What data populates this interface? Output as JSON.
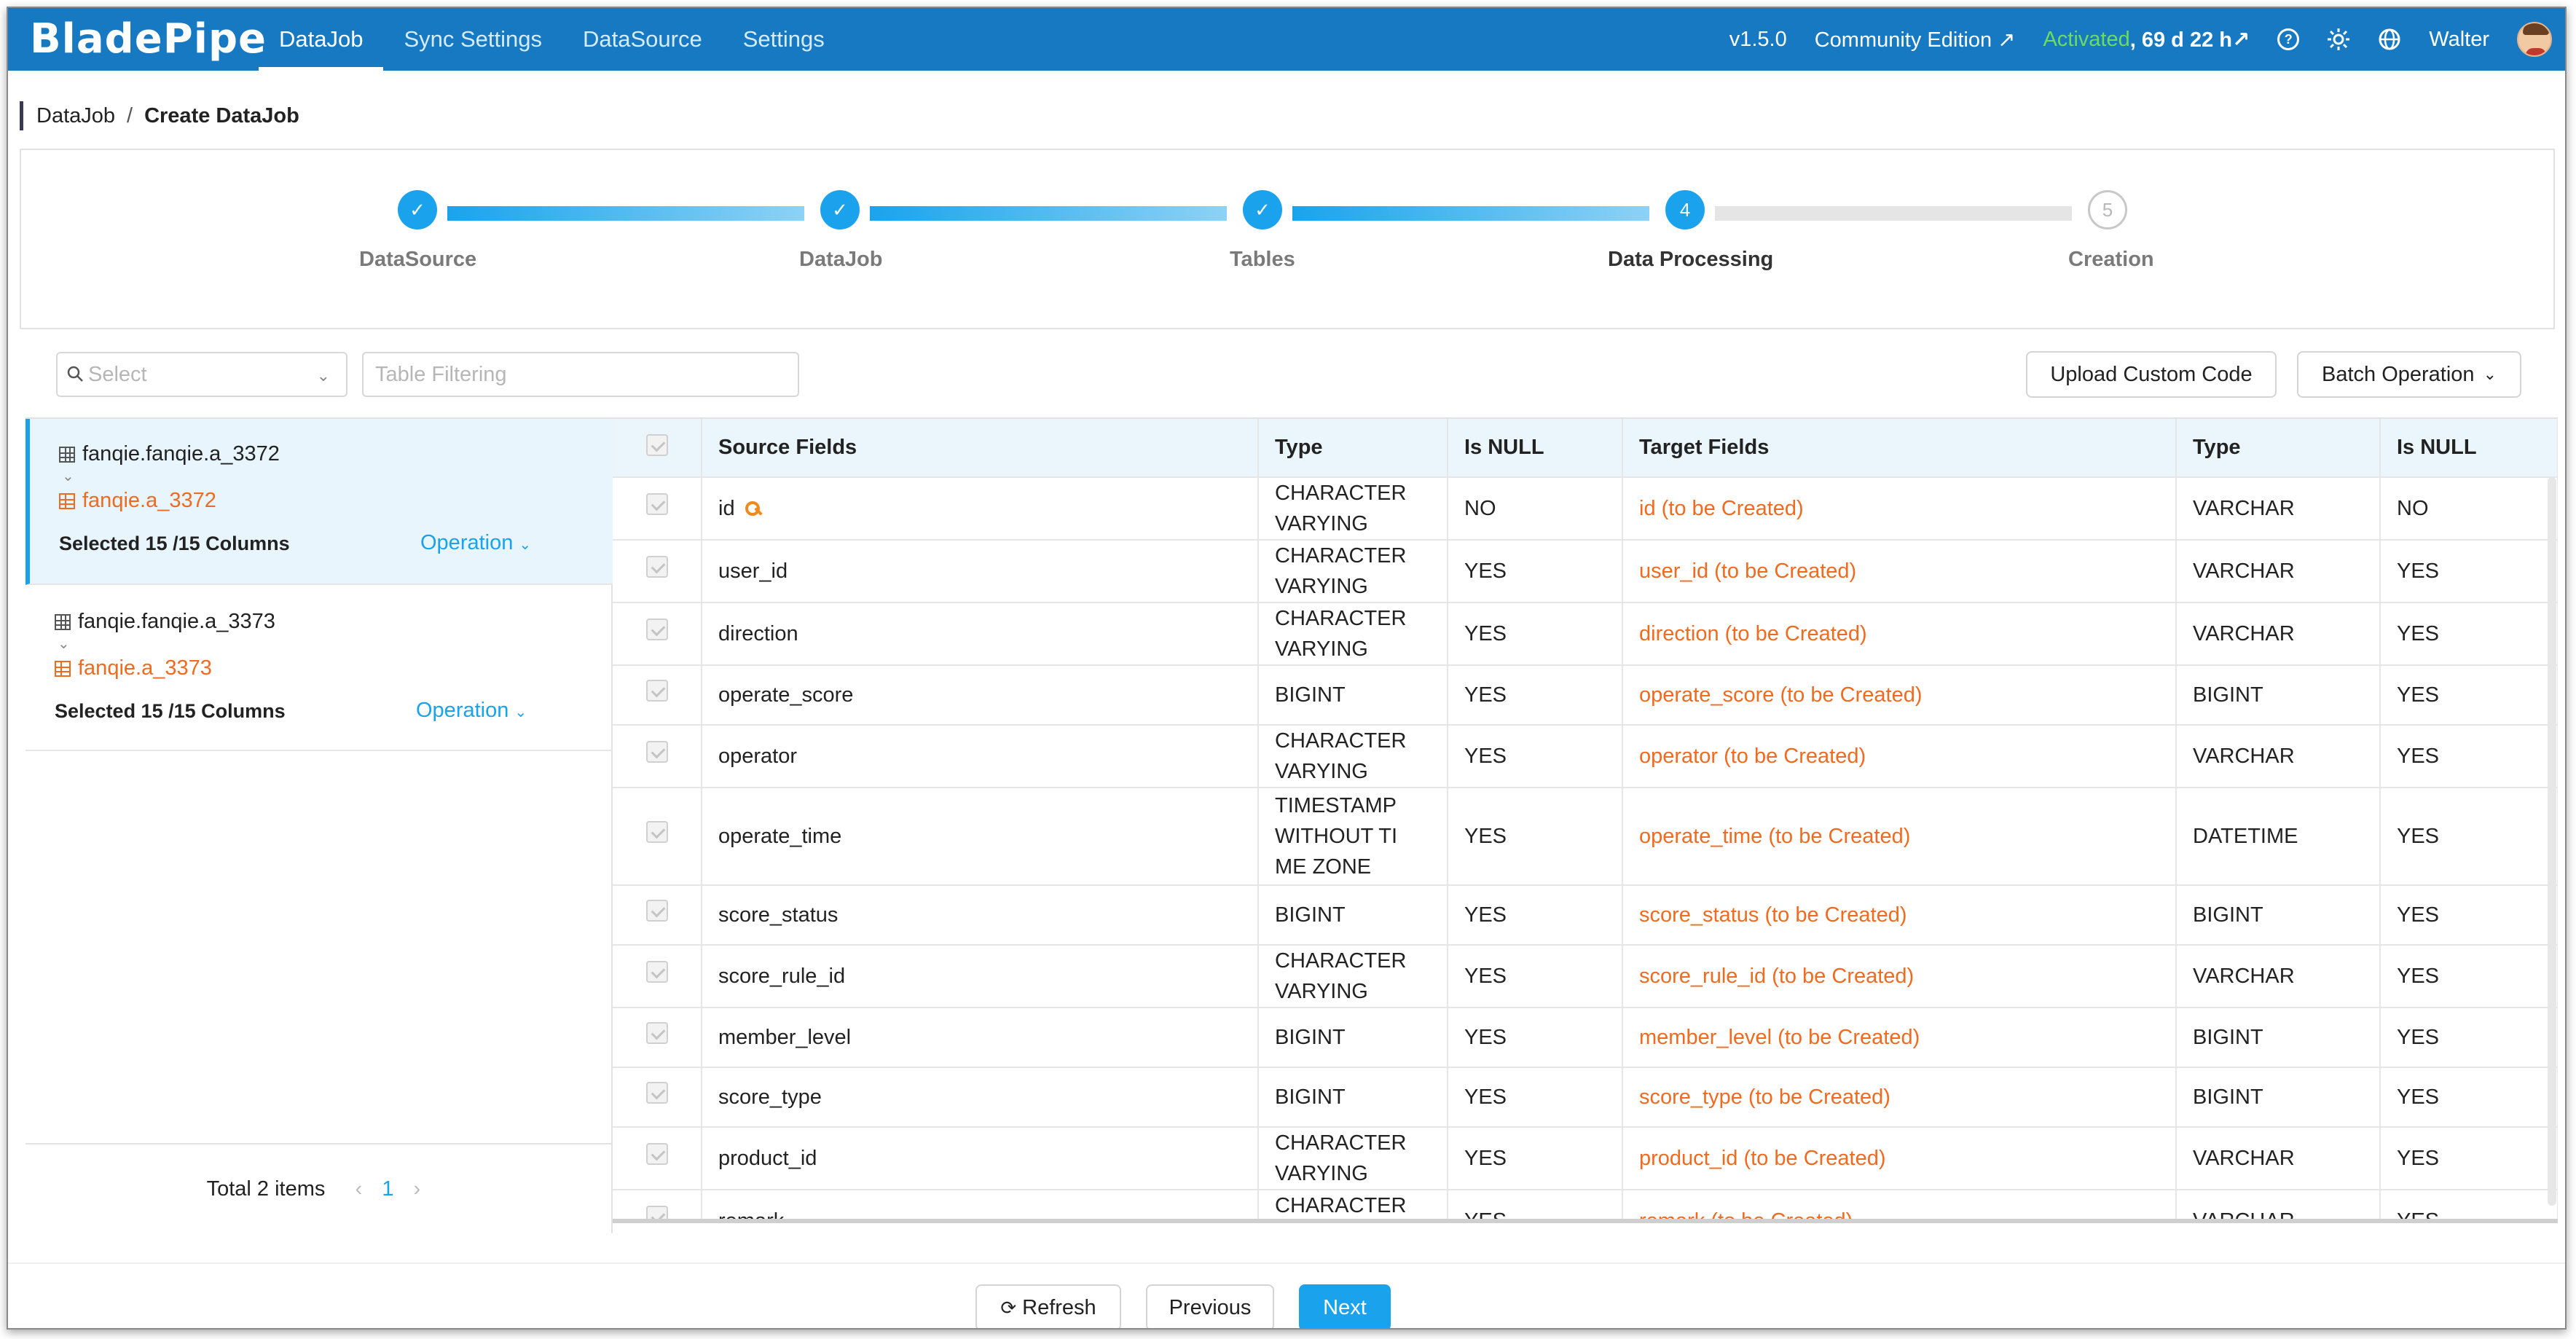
{
  "app": {
    "logo": "BladePipe"
  },
  "nav": [
    {
      "label": "DataJob",
      "active": true
    },
    {
      "label": "Sync Settings",
      "active": false
    },
    {
      "label": "DataSource",
      "active": false
    },
    {
      "label": "Settings",
      "active": false
    }
  ],
  "topright": {
    "version": "v1.5.0",
    "edition": "Community Edition ↗",
    "activated": "Activated",
    "remaining": ", 69 d 22 h↗",
    "user": "Walter"
  },
  "breadcrumb": {
    "parent": "DataJob",
    "sep": "/",
    "current": "Create DataJob"
  },
  "steps": [
    {
      "label": "DataSource",
      "state": "done",
      "mark": "✓"
    },
    {
      "label": "DataJob",
      "state": "done",
      "mark": "✓"
    },
    {
      "label": "Tables",
      "state": "done",
      "mark": "✓"
    },
    {
      "label": "Data Processing",
      "state": "current",
      "mark": "4"
    },
    {
      "label": "Creation",
      "state": "todo",
      "mark": "5"
    }
  ],
  "filter": {
    "select_placeholder": "Select",
    "table_placeholder": "Table Filtering"
  },
  "buttons": {
    "upload": "Upload Custom Code",
    "batch": "Batch Operation",
    "refresh": "Refresh",
    "previous": "Previous",
    "next": "Next"
  },
  "tables_list": [
    {
      "source": "fanqie.fanqie.a_3372",
      "target": "fanqie.a_3372",
      "selected": "Selected 15 /15 Columns",
      "op": "Operation"
    },
    {
      "source": "fanqie.fanqie.a_3373",
      "target": "fanqie.a_3373",
      "selected": "Selected 15 /15 Columns",
      "op": "Operation"
    }
  ],
  "pagination": {
    "total": "Total 2 items",
    "page": "1"
  },
  "columns": [
    "Source Fields",
    "Type",
    "Is NULL",
    "Target Fields",
    "Type",
    "Is NULL"
  ],
  "rows": [
    {
      "src": "id",
      "key": true,
      "stype": "CHARACTER VARYING",
      "snull": "NO",
      "tgt": "id (to be Created)",
      "ttype": "VARCHAR",
      "tnull": "NO"
    },
    {
      "src": "user_id",
      "stype": "CHARACTER VARYING",
      "snull": "YES",
      "tgt": "user_id (to be Created)",
      "ttype": "VARCHAR",
      "tnull": "YES"
    },
    {
      "src": "direction",
      "stype": "CHARACTER VARYING",
      "snull": "YES",
      "tgt": "direction (to be Created)",
      "ttype": "VARCHAR",
      "tnull": "YES"
    },
    {
      "src": "operate_score",
      "stype": "BIGINT",
      "snull": "YES",
      "tgt": "operate_score (to be Created)",
      "ttype": "BIGINT",
      "tnull": "YES"
    },
    {
      "src": "operator",
      "stype": "CHARACTER VARYING",
      "snull": "YES",
      "tgt": "operator (to be Created)",
      "ttype": "VARCHAR",
      "tnull": "YES"
    },
    {
      "src": "operate_time",
      "stype": "TIMESTAMP WITHOUT TI ME ZONE",
      "snull": "YES",
      "tgt": "operate_time (to be Created)",
      "ttype": "DATETIME",
      "tnull": "YES"
    },
    {
      "src": "score_status",
      "stype": "BIGINT",
      "snull": "YES",
      "tgt": "score_status (to be Created)",
      "ttype": "BIGINT",
      "tnull": "YES"
    },
    {
      "src": "score_rule_id",
      "stype": "CHARACTER VARYING",
      "snull": "YES",
      "tgt": "score_rule_id (to be Created)",
      "ttype": "VARCHAR",
      "tnull": "YES"
    },
    {
      "src": "member_level",
      "stype": "BIGINT",
      "snull": "YES",
      "tgt": "member_level (to be Created)",
      "ttype": "BIGINT",
      "tnull": "YES"
    },
    {
      "src": "score_type",
      "stype": "BIGINT",
      "snull": "YES",
      "tgt": "score_type (to be Created)",
      "ttype": "BIGINT",
      "tnull": "YES"
    },
    {
      "src": "product_id",
      "stype": "CHARACTER VARYING",
      "snull": "YES",
      "tgt": "product_id (to be Created)",
      "ttype": "VARCHAR",
      "tnull": "YES"
    },
    {
      "src": "remark",
      "stype": "CHARACTER VARYING",
      "snull": "YES",
      "tgt": "remark (to be Created)",
      "ttype": "VARCHAR",
      "tnull": "YES"
    }
  ],
  "colors": {
    "brand": "#1779c2",
    "accent": "#1aa3ec",
    "target": "#f06a1f",
    "activated": "#6cdc5e"
  }
}
